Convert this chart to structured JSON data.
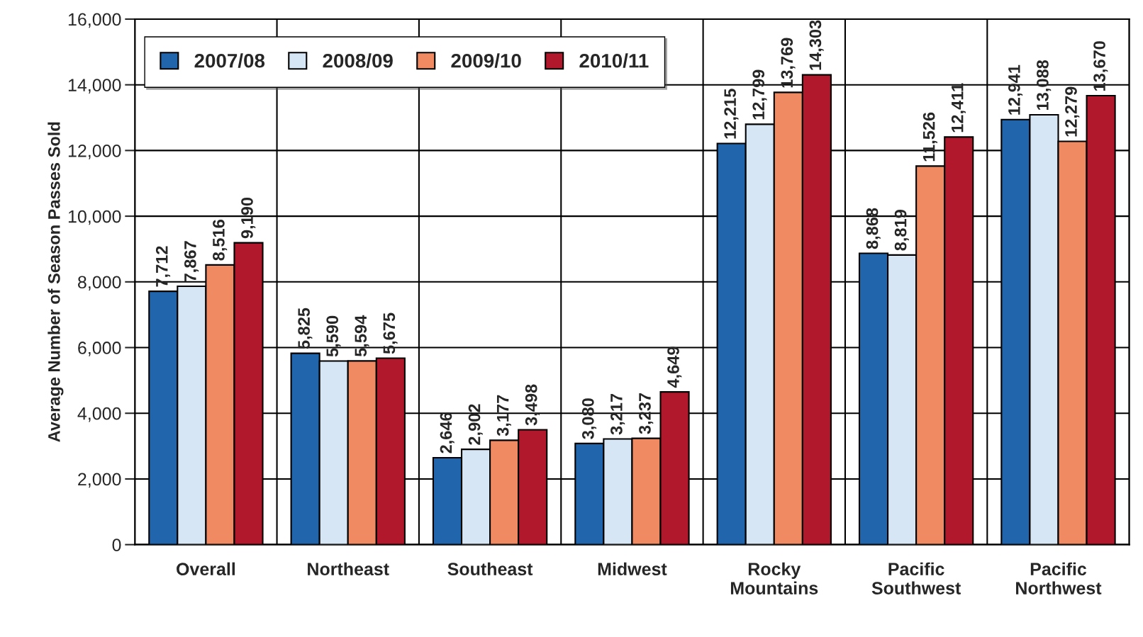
{
  "chart_data": {
    "type": "bar",
    "ylabel": "Average Number of Season Passes Sold",
    "categories": [
      "Overall",
      "Northeast",
      "Southeast",
      "Midwest",
      "Rocky\nMountains",
      "Pacific\nSouthwest",
      "Pacific\nNorthwest"
    ],
    "series": [
      {
        "name": "2007/08",
        "color": "#2166ac",
        "values": [
          7712,
          5825,
          2646,
          3080,
          12215,
          8868,
          12941
        ],
        "value_labels": [
          "7,712",
          "5,825",
          "2,646",
          "3,080",
          "12,215",
          "8,868",
          "12,941"
        ]
      },
      {
        "name": "2008/09",
        "color": "#d6e6f4",
        "values": [
          7867,
          5590,
          2902,
          3217,
          12799,
          8819,
          13088
        ],
        "value_labels": [
          "7,867",
          "5,590",
          "2,902",
          "3,217",
          "12,799",
          "8,819",
          "13,088"
        ]
      },
      {
        "name": "2009/10",
        "color": "#ef8a62",
        "values": [
          8516,
          5594,
          3177,
          3237,
          13769,
          11526,
          12279
        ],
        "value_labels": [
          "8,516",
          "5,594",
          "3,177",
          "3,237",
          "13,769",
          "11,526",
          "12,279"
        ]
      },
      {
        "name": "2010/11",
        "color": "#b2182b",
        "values": [
          9190,
          5675,
          3498,
          4649,
          14303,
          12411,
          13670
        ],
        "value_labels": [
          "9,190",
          "5,675",
          "3,498",
          "4,649",
          "14,303",
          "12,411",
          "13,670"
        ]
      }
    ],
    "ylim": [
      0,
      16000
    ],
    "yticks": [
      0,
      {
        "value": 2000,
        "label": "2,000"
      },
      {
        "value": 4000,
        "label": "4,000"
      },
      {
        "value": 6000,
        "label": "6,000"
      },
      {
        "value": 8000,
        "label": "8,000"
      },
      {
        "value": 10000,
        "label": "10,000"
      },
      {
        "value": 12000,
        "label": "12,000"
      },
      {
        "value": 14000,
        "label": "14,000"
      },
      {
        "value": 16000,
        "label": "16,000"
      }
    ],
    "grid": true,
    "legend": "top left"
  }
}
